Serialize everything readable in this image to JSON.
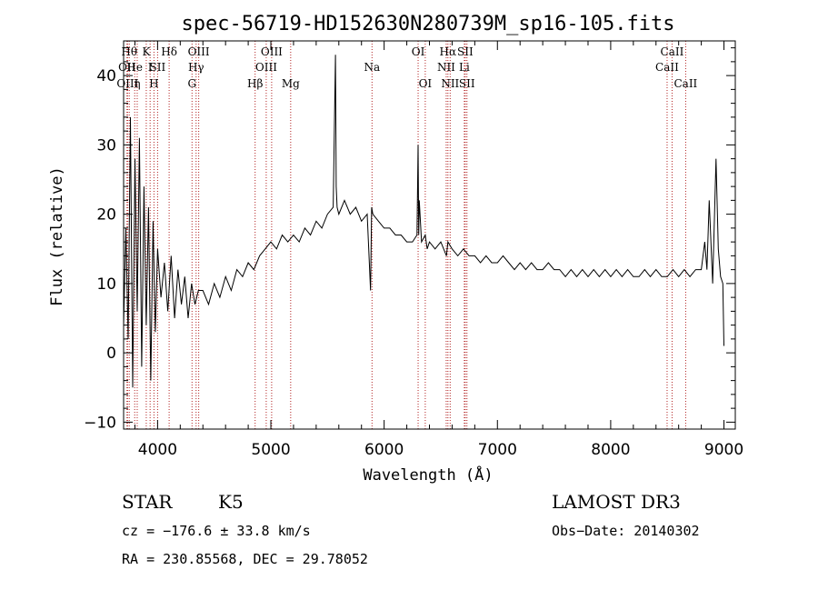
{
  "chart_data": {
    "type": "line",
    "title": "spec-56719-HD152630N280739M_sp16-105.fits",
    "xlabel": "Wavelength (Å)",
    "ylabel": "Flux (relative)",
    "xlim": [
      3700,
      9100
    ],
    "ylim": [
      -11,
      45
    ],
    "xticks": [
      {
        "value": 4000,
        "label": "4000"
      },
      {
        "value": 5000,
        "label": "5000"
      },
      {
        "value": 6000,
        "label": "6000"
      },
      {
        "value": 7000,
        "label": "7000"
      },
      {
        "value": 8000,
        "label": "8000"
      },
      {
        "value": 9000,
        "label": "9000"
      }
    ],
    "yticks": [
      {
        "value": -10,
        "label": "−10"
      },
      {
        "value": 0,
        "label": "0"
      },
      {
        "value": 10,
        "label": "10"
      },
      {
        "value": 20,
        "label": "20"
      },
      {
        "value": 30,
        "label": "30"
      },
      {
        "value": 40,
        "label": "40"
      }
    ],
    "series": [
      {
        "name": "spectrum",
        "x": [
          3700,
          3720,
          3740,
          3760,
          3780,
          3800,
          3820,
          3840,
          3860,
          3880,
          3900,
          3920,
          3940,
          3960,
          3980,
          4000,
          4030,
          4060,
          4090,
          4120,
          4150,
          4180,
          4210,
          4240,
          4270,
          4300,
          4330,
          4360,
          4400,
          4450,
          4500,
          4550,
          4600,
          4650,
          4700,
          4750,
          4800,
          4850,
          4900,
          4950,
          5000,
          5050,
          5100,
          5150,
          5200,
          5250,
          5300,
          5350,
          5400,
          5450,
          5500,
          5550,
          5570,
          5577,
          5585,
          5600,
          5650,
          5700,
          5750,
          5800,
          5850,
          5880,
          5890,
          5900,
          5950,
          6000,
          6050,
          6100,
          6150,
          6200,
          6250,
          6290,
          6300,
          6305,
          6310,
          6330,
          6363,
          6380,
          6400,
          6450,
          6500,
          6550,
          6563,
          6600,
          6650,
          6700,
          6750,
          6800,
          6850,
          6900,
          6950,
          7000,
          7050,
          7100,
          7150,
          7200,
          7250,
          7300,
          7350,
          7400,
          7450,
          7500,
          7550,
          7600,
          7650,
          7700,
          7750,
          7800,
          7850,
          7900,
          7950,
          8000,
          8050,
          8100,
          8150,
          8200,
          8250,
          8300,
          8350,
          8400,
          8450,
          8500,
          8550,
          8600,
          8650,
          8700,
          8750,
          8800,
          8830,
          8850,
          8870,
          8900,
          8930,
          8950,
          8970,
          8990,
          9000
        ],
        "y": [
          4,
          18,
          2,
          34,
          -5,
          28,
          6,
          31,
          -2,
          24,
          4,
          21,
          -4,
          19,
          3,
          15,
          8,
          13,
          6,
          14,
          5,
          12,
          7,
          11,
          5,
          10,
          7,
          9,
          9,
          7,
          10,
          8,
          11,
          9,
          12,
          11,
          13,
          12,
          14,
          15,
          16,
          15,
          17,
          16,
          17,
          16,
          18,
          17,
          19,
          18,
          20,
          21,
          43,
          24,
          21,
          20,
          22,
          20,
          21,
          19,
          20,
          9,
          21,
          20,
          19,
          18,
          18,
          17,
          17,
          16,
          16,
          17,
          30,
          17,
          22,
          16,
          17,
          15,
          16,
          15,
          16,
          14,
          16,
          15,
          14,
          15,
          14,
          14,
          13,
          14,
          13,
          13,
          14,
          13,
          12,
          13,
          12,
          13,
          12,
          12,
          13,
          12,
          12,
          11,
          12,
          11,
          12,
          11,
          12,
          11,
          12,
          11,
          12,
          11,
          12,
          11,
          11,
          12,
          11,
          12,
          11,
          11,
          12,
          11,
          12,
          11,
          12,
          12,
          16,
          12,
          22,
          10,
          28,
          15,
          11,
          10,
          1
        ]
      }
    ],
    "line_markers": [
      {
        "wavelength": 3750,
        "label": "Hθ",
        "row": 1
      },
      {
        "wavelength": 3730,
        "label": "OII",
        "row": 2
      },
      {
        "wavelength": 3735,
        "label": "OIII",
        "row": 3
      },
      {
        "wavelength": 3798,
        "label": "He",
        "row": 2
      },
      {
        "wavelength": 3820,
        "label": "η",
        "row": 3
      },
      {
        "wavelength": 3900,
        "label": "K",
        "row": 1
      },
      {
        "wavelength": 3934,
        "label": "I",
        "row": 2
      },
      {
        "wavelength": 3968,
        "label": "H",
        "row": 3
      },
      {
        "wavelength": 4000,
        "label": "SII",
        "row": 2
      },
      {
        "wavelength": 4102,
        "label": "Hδ",
        "row": 1
      },
      {
        "wavelength": 4340,
        "label": "Hγ",
        "row": 2
      },
      {
        "wavelength": 4304,
        "label": "G",
        "row": 3
      },
      {
        "wavelength": 4363,
        "label": "OIII",
        "row": 1
      },
      {
        "wavelength": 4861,
        "label": "Hβ",
        "row": 3
      },
      {
        "wavelength": 4959,
        "label": "OIII",
        "row": 2
      },
      {
        "wavelength": 5007,
        "label": "OIII",
        "row": 1
      },
      {
        "wavelength": 5175,
        "label": "Mg",
        "row": 3
      },
      {
        "wavelength": 5893,
        "label": "Na",
        "row": 2
      },
      {
        "wavelength": 6300,
        "label": "OI",
        "row": 1
      },
      {
        "wavelength": 6363,
        "label": "OI",
        "row": 3
      },
      {
        "wavelength": 6548,
        "label": "NII",
        "row": 2
      },
      {
        "wavelength": 6563,
        "label": "Hα",
        "row": 1
      },
      {
        "wavelength": 6583,
        "label": "NII",
        "row": 3
      },
      {
        "wavelength": 6708,
        "label": "Li",
        "row": 2
      },
      {
        "wavelength": 6716,
        "label": "SII",
        "row": 1
      },
      {
        "wavelength": 6731,
        "label": "SII",
        "row": 3
      },
      {
        "wavelength": 8498,
        "label": "CaII",
        "row": 2
      },
      {
        "wavelength": 8542,
        "label": "CaII",
        "row": 1
      },
      {
        "wavelength": 8662,
        "label": "CaII",
        "row": 3
      }
    ]
  },
  "info": {
    "class": "STAR",
    "subclass": "K5",
    "survey": "LAMOST DR3",
    "cz": "cz = −176.6 ± 33.8 km/s",
    "obs_date": "Obs−Date: 20140302",
    "coords": "RA = 230.85568, DEC =  29.78052"
  },
  "colors": {
    "spectrum": "#000000",
    "marker": "#b22222",
    "axis": "#000000"
  }
}
